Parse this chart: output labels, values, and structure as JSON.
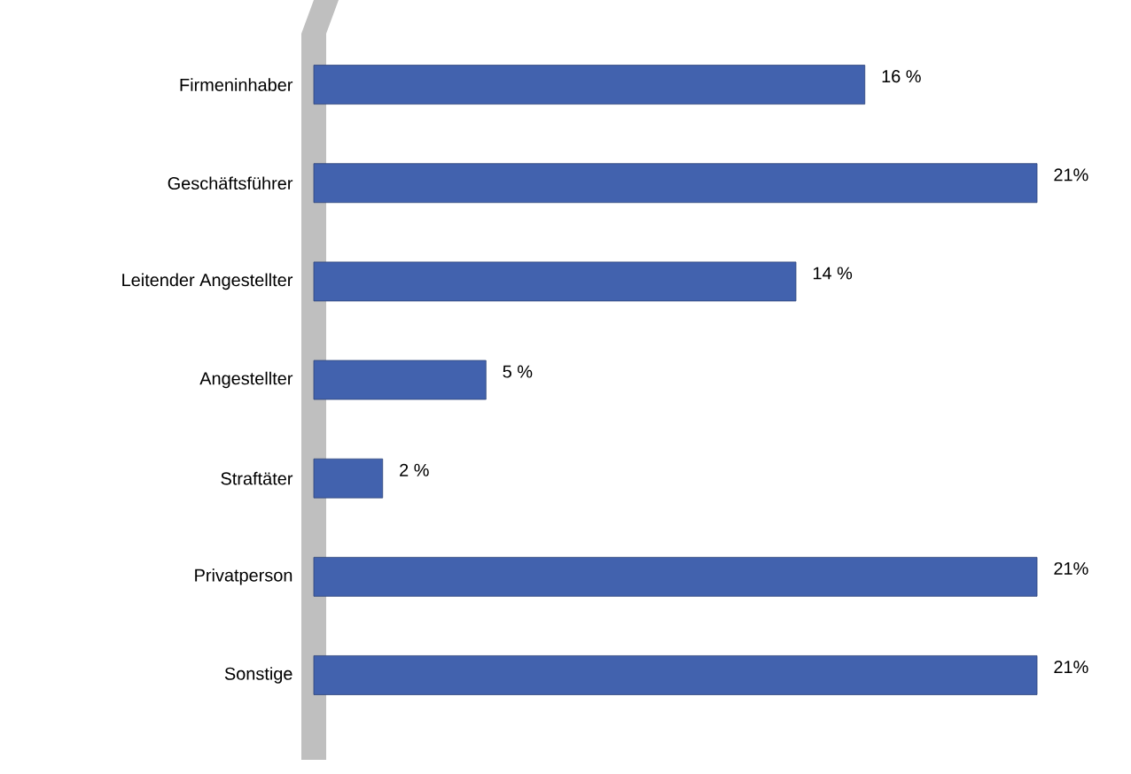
{
  "chart_data": {
    "type": "bar",
    "orientation": "horizontal",
    "categories": [
      "Firmeninhaber",
      "Geschäftsführer",
      "Leitender Angestellter",
      "Angestellter",
      "Straftäter",
      "Privatperson",
      "Sonstige"
    ],
    "values": [
      16,
      21,
      14,
      5,
      2,
      21,
      21
    ],
    "value_labels": [
      "16 %",
      "21%",
      "14 %",
      "5 %",
      "2 %",
      "21%",
      "21%"
    ],
    "color": "#4262ae"
  }
}
